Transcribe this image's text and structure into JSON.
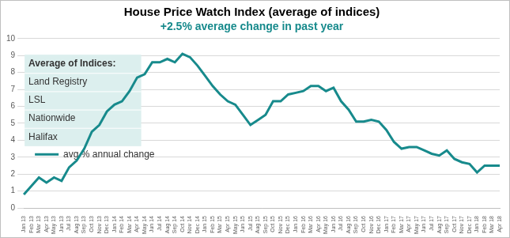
{
  "chart_data": {
    "type": "line",
    "title": "House Price Watch Index (average of indices)",
    "subtitle": "+2.5% average change in past year",
    "categories": [
      "Jan 13",
      "Feb 13",
      "Mar 13",
      "Apr 13",
      "May 13",
      "Jun 13",
      "Jul 13",
      "Aug 13",
      "Sep 13",
      "Oct 13",
      "Nov 13",
      "Dec 13",
      "Jan 14",
      "Feb 14",
      "Mar 14",
      "Apr 14",
      "May 14",
      "Jun 14",
      "Jul 14",
      "Aug 14",
      "Sep 14",
      "Oct 14",
      "Nov 14",
      "Dec 14",
      "Jan 15",
      "Feb 15",
      "Mar 15",
      "Apr 15",
      "May 15",
      "Jun 15",
      "Jul 15",
      "Aug 15",
      "Sep 15",
      "Oct 15",
      "Nov 15",
      "Dec 15",
      "Jan 16",
      "Feb 16",
      "Mar 16",
      "Apr 16",
      "May 16",
      "Jun 16",
      "Jul 16",
      "Aug 16",
      "Sep 16",
      "Oct 16",
      "Nov 16",
      "Dec 16",
      "Jan 17",
      "Feb 17",
      "Mar 17",
      "Apr 17",
      "May 17",
      "Jun 17",
      "Jul 17",
      "Aug 17",
      "Sep 17",
      "Oct 17",
      "Nov 17",
      "Dec 17",
      "Jan 18",
      "Feb 18",
      "Mar 18",
      "Apr 18"
    ],
    "series": [
      {
        "name": "avg % annual change",
        "color": "#178a8c",
        "values": [
          0.8,
          1.3,
          1.8,
          1.5,
          1.8,
          1.6,
          2.4,
          2.8,
          3.5,
          4.5,
          4.9,
          5.7,
          6.1,
          6.3,
          6.9,
          7.7,
          7.9,
          8.6,
          8.6,
          8.8,
          8.6,
          9.1,
          8.9,
          8.4,
          7.8,
          7.2,
          6.7,
          6.3,
          6.1,
          5.5,
          4.9,
          5.2,
          5.5,
          6.3,
          6.3,
          6.7,
          6.8,
          6.9,
          7.2,
          7.2,
          6.9,
          7.1,
          6.3,
          5.8,
          5.1,
          5.1,
          5.2,
          5.1,
          4.6,
          3.9,
          3.5,
          3.6,
          3.6,
          3.4,
          3.2,
          3.1,
          3.4,
          2.9,
          2.7,
          2.6,
          2.1,
          2.5,
          2.5,
          2.5
        ]
      }
    ],
    "ylim": [
      0,
      10
    ],
    "yticks": [
      0,
      1,
      2,
      3,
      4,
      5,
      6,
      7,
      8,
      9,
      10
    ],
    "grid": true,
    "legend": "upper right",
    "annotation": {
      "title": "Average of Indices:",
      "items": [
        "Land Registry",
        "LSL",
        "Nationwide",
        "Halifax"
      ]
    }
  }
}
